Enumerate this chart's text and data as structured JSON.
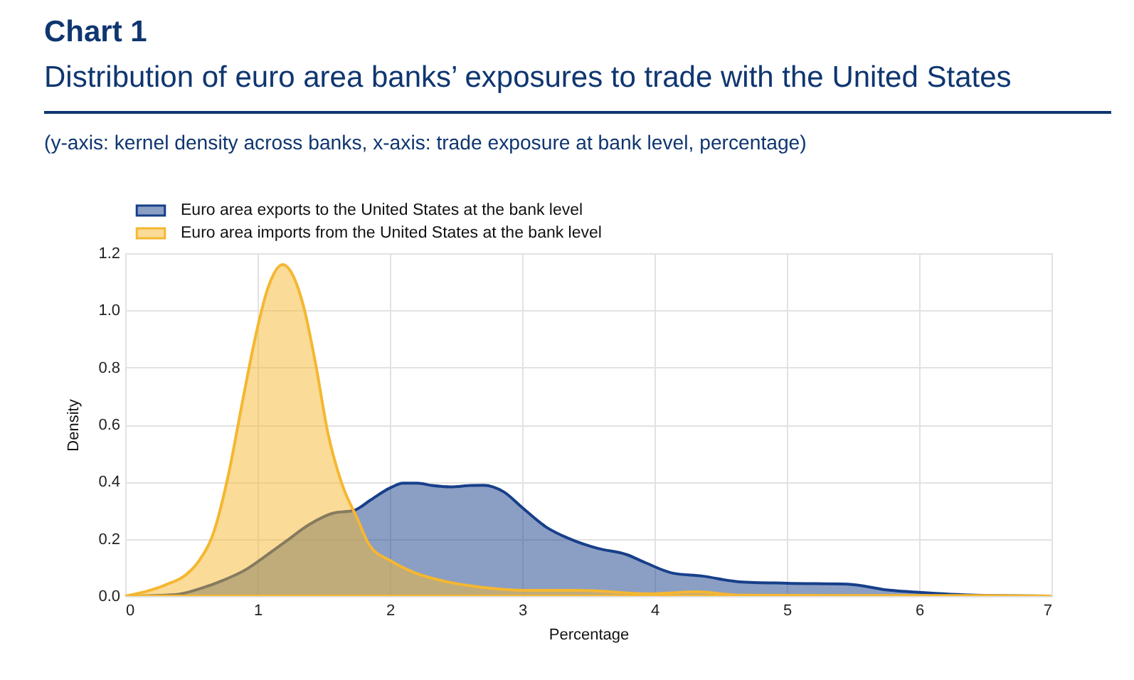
{
  "chart_data": {
    "type": "area",
    "title": "Chart 1",
    "subtitle": "Distribution of euro area banks’ exposures to trade with the United States",
    "annotations": [
      "(y-axis: kernel density across banks, x-axis: trade exposure at bank level, percentage)"
    ],
    "xlabel": "Percentage",
    "ylabel": "Density",
    "xlim": [
      0,
      7
    ],
    "xticks": [
      0,
      1,
      2,
      3,
      4,
      5,
      6,
      7
    ],
    "ylim": [
      0,
      1.2
    ],
    "yticks": [
      {
        "value": 0,
        "label": "0.0"
      },
      0.2,
      0.4,
      0.6,
      0.8,
      {
        "value": 1,
        "label": "1.0"
      },
      1.2
    ],
    "grid": true,
    "legend": "top left",
    "series": [
      {
        "name": "Euro area exports to the United States at the bank level",
        "color": "#173f8a",
        "x": [
          0,
          0.38,
          0.56,
          0.74,
          0.92,
          1.06,
          1.21,
          1.39,
          1.57,
          1.73,
          1.85,
          2.0,
          2.1,
          2.21,
          2.32,
          2.46,
          2.61,
          2.71,
          2.86,
          3.0,
          3.18,
          3.36,
          3.57,
          3.79,
          3.93,
          4.14,
          4.36,
          4.64,
          5.0,
          5.46,
          5.75,
          6.0,
          6.43,
          7.0
        ],
        "values": [
          0,
          0.005,
          0.025,
          0.055,
          0.095,
          0.14,
          0.19,
          0.25,
          0.29,
          0.3,
          0.335,
          0.378,
          0.395,
          0.395,
          0.387,
          0.382,
          0.387,
          0.388,
          0.365,
          0.31,
          0.242,
          0.2,
          0.167,
          0.145,
          0.117,
          0.08,
          0.07,
          0.05,
          0.045,
          0.042,
          0.022,
          0.013,
          0.003,
          0
        ]
      },
      {
        "name": "Euro area imports from the United States at the bank level",
        "color": "#f5b731",
        "x": [
          0,
          0.31,
          0.46,
          0.56,
          0.67,
          0.78,
          0.89,
          0.99,
          1.08,
          1.19,
          1.28,
          1.35,
          1.44,
          1.53,
          1.64,
          1.75,
          1.85,
          2.0,
          2.18,
          2.43,
          2.71,
          3.03,
          3.43,
          3.96,
          4.32,
          4.64,
          5.5,
          6.5,
          7.0
        ],
        "values": [
          0,
          0.04,
          0.075,
          0.125,
          0.225,
          0.425,
          0.69,
          0.92,
          1.08,
          1.16,
          1.11,
          1.01,
          0.81,
          0.575,
          0.39,
          0.275,
          0.175,
          0.125,
          0.083,
          0.05,
          0.03,
          0.02,
          0.02,
          0.008,
          0.015,
          0.003,
          0.002,
          0.002,
          0
        ]
      }
    ]
  }
}
